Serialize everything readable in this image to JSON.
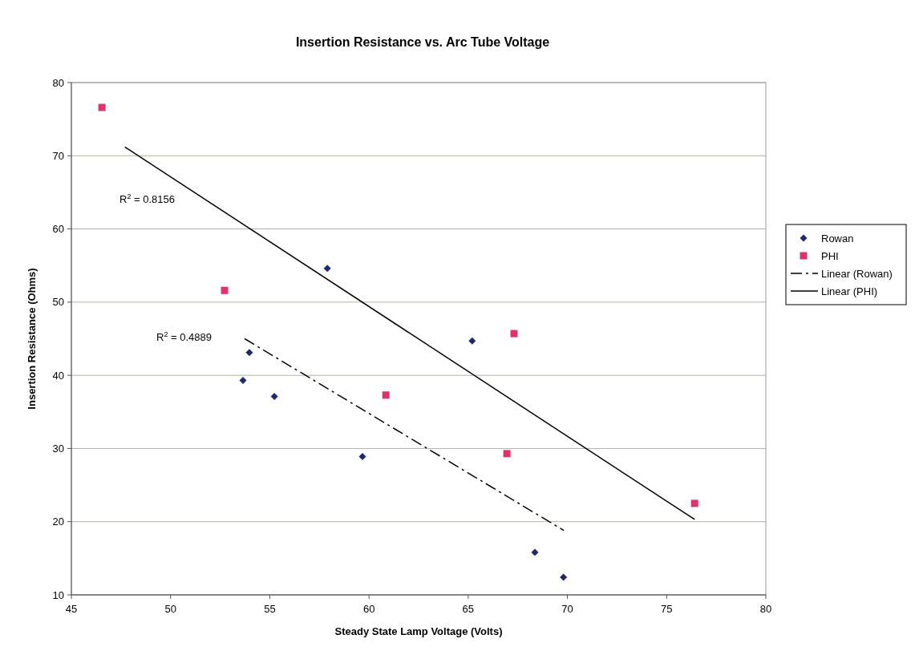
{
  "chart_data": {
    "type": "scatter",
    "title": "Insertion Resistance vs. Arc Tube Voltage",
    "xlabel": "Steady State Lamp Voltage (Volts)",
    "ylabel": "Insertion Resistance (Ohms)",
    "xlim": [
      45,
      80
    ],
    "xticks": [
      45,
      50,
      55,
      60,
      65,
      70,
      75,
      80
    ],
    "ylim": [
      10,
      80
    ],
    "yticks": [
      10,
      20,
      30,
      40,
      50,
      60,
      70,
      80
    ],
    "grid": "y",
    "legend": "right",
    "series": [
      {
        "name": "Rowan",
        "marker": "diamond",
        "color": "#1f2a6e",
        "x": [
          57.9,
          53.97,
          53.65,
          55.23,
          59.67,
          65.2,
          68.36,
          69.8
        ],
        "values": [
          54.6,
          43.1,
          39.3,
          37.1,
          28.9,
          44.7,
          15.8,
          12.4
        ]
      },
      {
        "name": "PHI",
        "marker": "square",
        "color": "#e0336b",
        "x": [
          46.54,
          52.72,
          60.85,
          67.31,
          66.95,
          76.41
        ],
        "values": [
          76.6,
          51.6,
          37.3,
          45.7,
          29.3,
          22.5
        ]
      },
      {
        "name": "Linear (Rowan)",
        "type": "line",
        "line_style": "dashed",
        "color": "#000000",
        "x": [
          53.73,
          69.82
        ],
        "values": [
          45.0,
          18.8
        ]
      },
      {
        "name": "Linear (PHI)",
        "type": "line",
        "line_style": "solid",
        "color": "#000000",
        "x": [
          47.7,
          76.41
        ],
        "values": [
          71.2,
          20.3
        ]
      }
    ],
    "annotations": [
      "R$^{2}$ = 0.8156",
      "R$^{2}$ = 0.4889"
    ]
  }
}
